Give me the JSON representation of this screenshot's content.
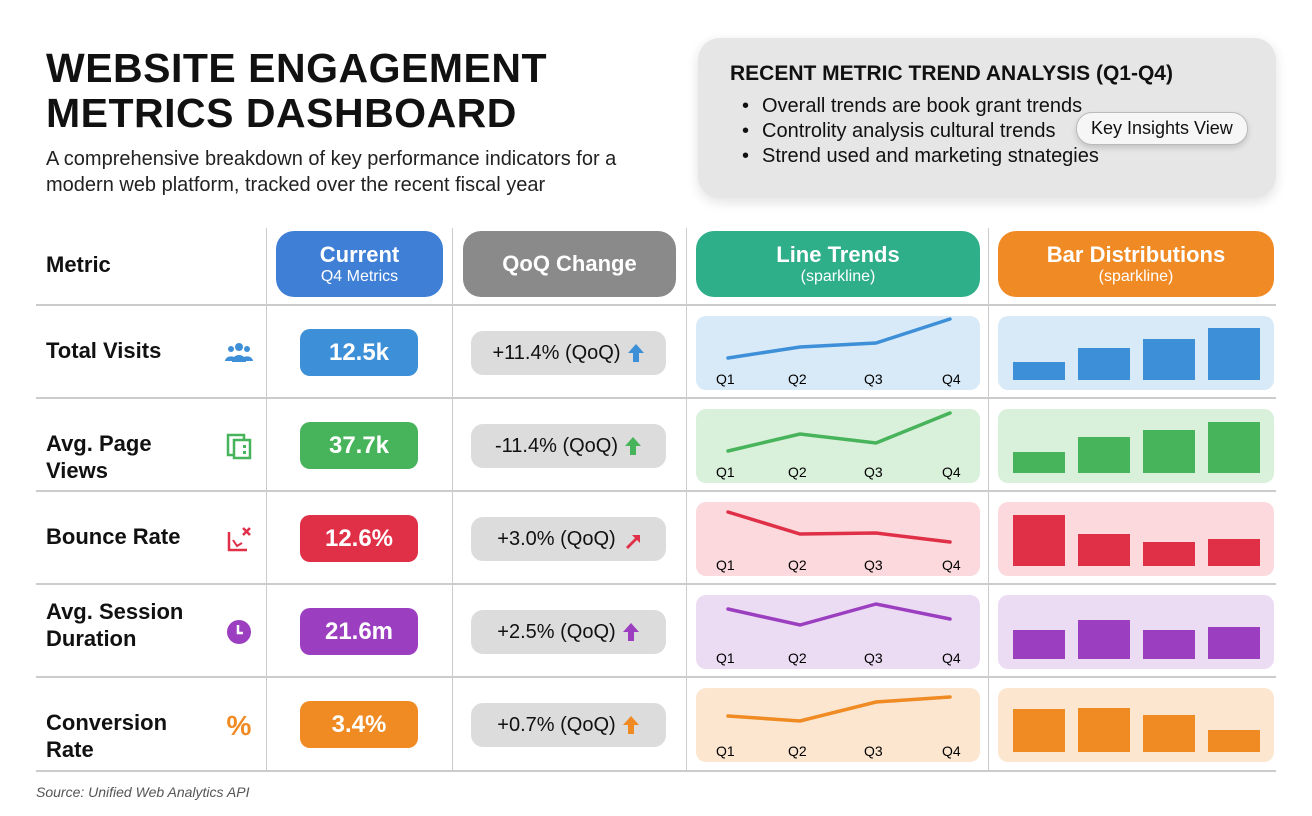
{
  "title_line1": "WEBSITE ENGAGEMENT",
  "title_line2": "METRICS DASHBOARD",
  "subtitle": "A comprehensive breakdown of key performance indicators for a modern web platform, tracked over the recent fiscal year",
  "insights": {
    "heading": "RECENT METRIC TREND ANALYSIS (Q1-Q4)",
    "bullets": [
      "Overall trends are book grant trends",
      "Controlity analysis cultural trends",
      "Strend used and marketing stnategies"
    ],
    "button": "Key Insights View"
  },
  "headers": {
    "metric": "Metric",
    "current": {
      "title": "Current",
      "sub": "Q4 Metrics",
      "color": "#3f7fd6"
    },
    "qoq": {
      "title": "QoQ Change",
      "color": "#8a8a8a"
    },
    "line": {
      "title": "Line Trends",
      "sub": "(sparkline)",
      "color": "#2fae8a"
    },
    "bar": {
      "title": "Bar Distributions",
      "sub": "(sparkline)",
      "color": "#f08a24"
    }
  },
  "source": "Source: Unified Web Analytics API",
  "chart_data": {
    "type": "table",
    "quarters": [
      "Q1",
      "Q2",
      "Q3",
      "Q4"
    ],
    "rows": [
      {
        "metric": "Total Visits",
        "icon": "users-icon",
        "value": "12.5k",
        "qoq": "+11.4% (QoQ)",
        "arrow": "up",
        "color": "#3d8fd8",
        "bg": "#d8eaf8",
        "line": [
          12,
          34,
          42,
          90
        ],
        "bars": [
          18,
          32,
          41,
          52
        ]
      },
      {
        "metric": "Avg. Page Views",
        "icon": "pages-icon",
        "value": "37.7k",
        "qoq": "-11.4% (QoQ)",
        "arrow": "up",
        "color": "#47b35a",
        "bg": "#d9f0da",
        "line": [
          12,
          46,
          28,
          88
        ],
        "bars": [
          21,
          36,
          43,
          51
        ]
      },
      {
        "metric": "Bounce Rate",
        "icon": "bounce-icon",
        "value": "12.6%",
        "qoq": "+3.0% (QoQ)",
        "arrow": "up-right",
        "color": "#e03048",
        "bg": "#fbd9dc",
        "line": [
          76,
          32,
          34,
          16
        ],
        "bars": [
          51,
          32,
          24,
          27
        ]
      },
      {
        "metric": "Avg. Session Duration",
        "icon": "clock-icon",
        "value": "21.6m",
        "qoq": "+2.5% (QoQ)",
        "arrow": "up",
        "color": "#9b3fc0",
        "bg": "#ecdcf3",
        "line": [
          68,
          36,
          78,
          48
        ],
        "bars": [
          29,
          39,
          29,
          32
        ]
      },
      {
        "metric": "Conversion Rate",
        "icon": "percent-icon",
        "value": "3.4%",
        "qoq": "+0.7% (QoQ)",
        "arrow": "up",
        "color": "#f08a22",
        "bg": "#fde6cf",
        "line": [
          40,
          30,
          68,
          78
        ],
        "bars": [
          43,
          44,
          37,
          22
        ]
      }
    ]
  }
}
